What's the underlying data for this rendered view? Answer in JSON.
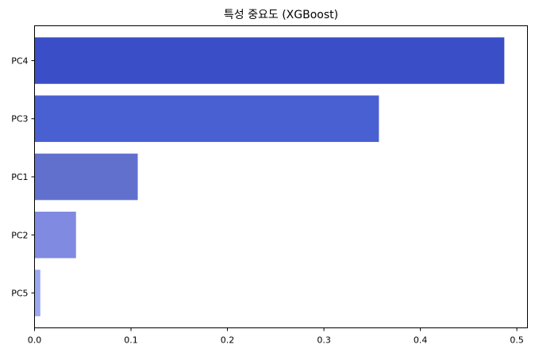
{
  "chart_data": {
    "type": "bar",
    "orientation": "horizontal",
    "title": "특성 중요도 (XGBoost)",
    "xlabel": "",
    "ylabel": "",
    "categories": [
      "PC4",
      "PC3",
      "PC1",
      "PC2",
      "PC5"
    ],
    "values": [
      0.487,
      0.357,
      0.107,
      0.043,
      0.006
    ],
    "colors": [
      "#3a4fc7",
      "#4960d2",
      "#6170cc",
      "#808ae1",
      "#9ba7f0"
    ],
    "xlim": [
      0,
      0.511
    ],
    "xticks": [
      0.0,
      0.1,
      0.2,
      0.3,
      0.4,
      0.5
    ],
    "xtick_labels": [
      "0.0",
      "0.1",
      "0.2",
      "0.3",
      "0.4",
      "0.5"
    ],
    "grid": false,
    "legend": "none"
  }
}
